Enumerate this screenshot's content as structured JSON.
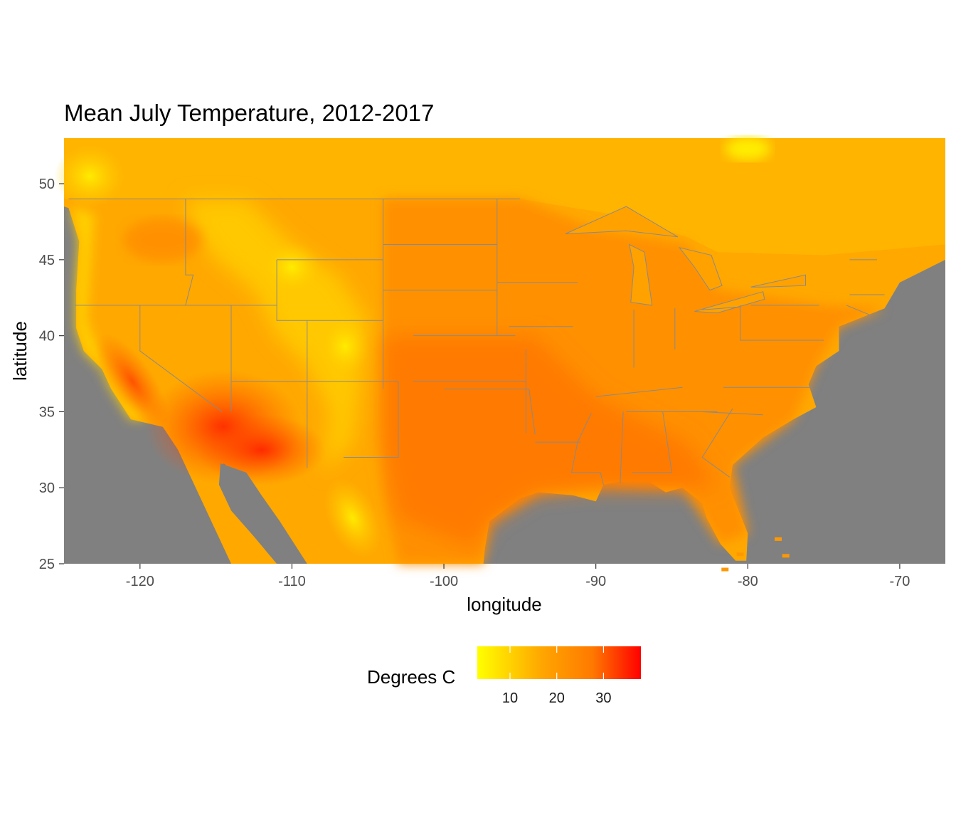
{
  "chart_data": {
    "type": "heatmap",
    "title": "Mean July Temperature, 2012-2017",
    "xlabel": "longitude",
    "ylabel": "latitude",
    "xlim": [
      -125,
      -67
    ],
    "ylim": [
      25,
      53
    ],
    "x_ticks": [
      -120,
      -110,
      -100,
      -90,
      -80,
      -70
    ],
    "y_ticks": [
      25,
      30,
      35,
      40,
      45,
      50
    ],
    "x_tick_labels": [
      "-120",
      "-110",
      "-100",
      "-90",
      "-80",
      "-70"
    ],
    "y_tick_labels": [
      "25",
      "30",
      "35",
      "40",
      "45",
      "50"
    ],
    "legend": {
      "title": "Degrees C",
      "position": "bottom",
      "range": [
        3,
        38
      ],
      "ticks": [
        10,
        20,
        30
      ],
      "tick_labels": [
        "10",
        "20",
        "30"
      ],
      "colors": [
        "#ffff00",
        "#ffa500",
        "#ff0000"
      ]
    },
    "background_color": "#808080",
    "grid": false
  }
}
